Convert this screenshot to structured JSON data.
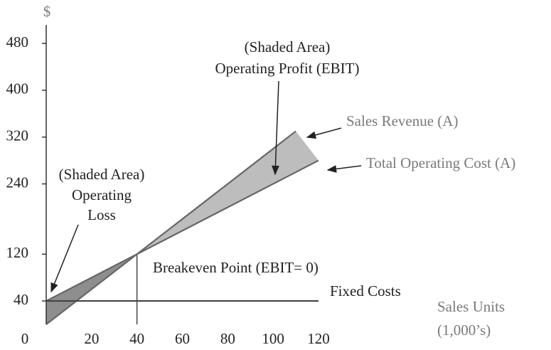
{
  "chart_data": {
    "type": "line",
    "y_axis_label": "$",
    "x_axis_label": "Sales Units",
    "x_axis_unit": "(1,000’s)",
    "xlim": [
      0,
      120
    ],
    "xticks": [
      0,
      20,
      40,
      60,
      80,
      100,
      120
    ],
    "ylim": [
      0,
      480
    ],
    "yticks": [
      0,
      40,
      120,
      240,
      320,
      400,
      480
    ],
    "series": [
      {
        "name": "Sales Revenue (A)",
        "color": "#666666",
        "x": [
          0,
          110
        ],
        "values": [
          0,
          330
        ]
      },
      {
        "name": "Total Operating Cost (A)",
        "color": "#666666",
        "x": [
          0,
          120
        ],
        "values": [
          40,
          280
        ]
      },
      {
        "name": "Fixed Costs",
        "color": "#444444",
        "x": [
          0,
          120
        ],
        "values": [
          40,
          40
        ]
      }
    ],
    "profit_fill": "#bdbdbd",
    "loss_fill": "#8e8e8e",
    "annotations": {
      "profit": [
        "(Shaded Area)",
        "Operating Profit (EBIT)"
      ],
      "loss": [
        "(Shaded Area)",
        "Operating",
        "Loss"
      ],
      "breakeven": "Breakeven Point (EBIT= 0)"
    }
  }
}
